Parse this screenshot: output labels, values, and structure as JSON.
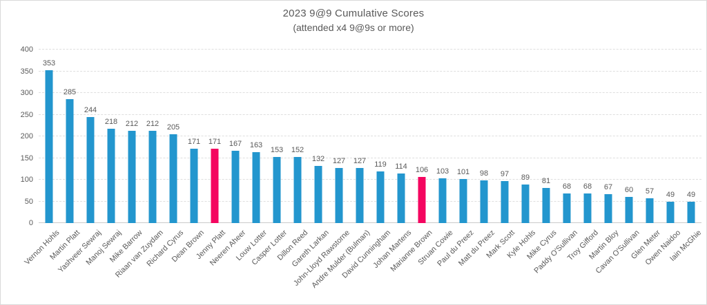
{
  "chart_data": {
    "type": "bar",
    "title": "2023 9@9 Cumulative Scores",
    "subtitle": "(attended x4 9@9s or more)",
    "categories": [
      "Vernon Hohls",
      "Martin Platt",
      "Yashveer Sewraj",
      "Manoj Sewraj",
      "Mike Barrow",
      "Riaan van Zuydam",
      "Richard Cyrus",
      "Dean Brown",
      "Jenny Platt",
      "Neeren Aheer",
      "Louw Lotter",
      "Casper Lotter",
      "Dillon Reed",
      "Gareth Larkan",
      "John-Lloyd Rawstorne",
      "Andre Mulder (Bulman)",
      "David Cunningham",
      "Johan Martens",
      "Marianne Brown",
      "Struan Cowie",
      "Paul du Preez",
      "Matt du Preez",
      "Mark Scott",
      "Kyle Hohls",
      "Mike Cyrus",
      "Paddy O'Sullivan",
      "Troy Gifford",
      "Martin Bloy",
      "Cavan O'Sullivan",
      "Glen Meter",
      "Owen Naidoo",
      "Iain McGhie"
    ],
    "values": [
      353,
      285,
      244,
      218,
      212,
      212,
      205,
      171,
      171,
      167,
      163,
      153,
      152,
      132,
      127,
      127,
      119,
      114,
      106,
      103,
      101,
      98,
      97,
      89,
      81,
      68,
      68,
      67,
      60,
      57,
      49,
      49
    ],
    "highlight_indices": [
      8,
      18
    ],
    "ylim": [
      0,
      400
    ],
    "yticks": [
      0,
      50,
      100,
      150,
      200,
      250,
      300,
      350,
      400
    ],
    "grid": true,
    "legend": "none",
    "colors": {
      "bar": "#2396CE",
      "highlight": "#F40660",
      "text": "#595959",
      "gridline": "#DEDEDE",
      "axis": "#C9C9C9",
      "border": "#D9D9D9"
    }
  }
}
